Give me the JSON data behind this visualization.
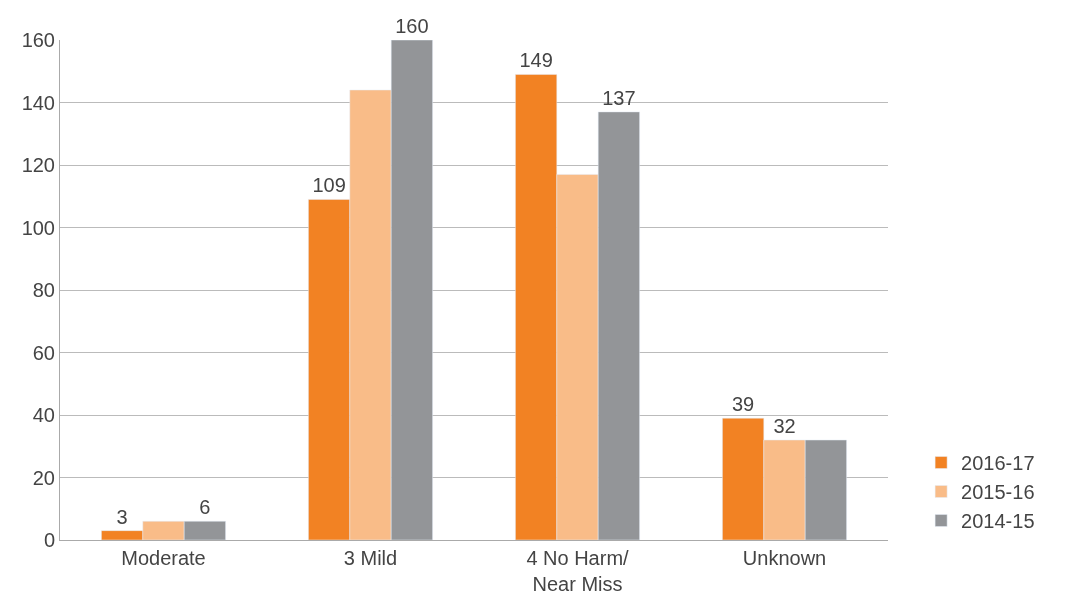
{
  "chart_data": {
    "type": "bar",
    "categories": [
      "Moderate",
      "3 Mild",
      "4 No Harm/\nNear Miss",
      "Unknown"
    ],
    "series": [
      {
        "name": "2016-17",
        "color": "#f28223",
        "values": [
          3,
          109,
          149,
          39
        ],
        "value_labels": [
          "3",
          "109",
          "149",
          "39"
        ]
      },
      {
        "name": "2015-16",
        "color": "#f9bc88",
        "values": [
          6,
          144,
          117,
          32
        ],
        "value_labels": [
          null,
          null,
          null,
          "32"
        ]
      },
      {
        "name": "2014-15",
        "color": "#939598",
        "values": [
          6,
          160,
          137,
          32
        ],
        "value_labels": [
          "6",
          "160",
          "137",
          null
        ]
      }
    ],
    "ylim": [
      0,
      160
    ],
    "yticks": [
      0,
      20,
      40,
      60,
      80,
      100,
      120,
      140,
      160
    ],
    "grid": "y",
    "legend": "bottom right"
  }
}
